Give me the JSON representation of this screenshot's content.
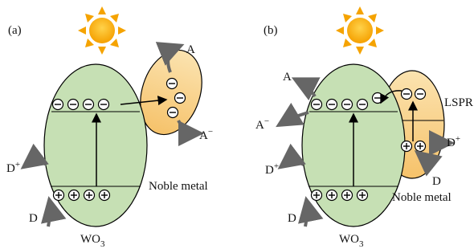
{
  "panels": [
    {
      "label": "(a)",
      "semiconductor": {
        "base": "WO",
        "sub": "3"
      },
      "acceptor": "A",
      "acceptor_ion": {
        "base": "A",
        "sup": "−"
      },
      "donor": "D",
      "donor_ion": {
        "base": "D",
        "sup": "+"
      },
      "metal": "Noble metal"
    },
    {
      "label": "(b)",
      "semiconductor": {
        "base": "WO",
        "sub": "3"
      },
      "acceptor": "A",
      "acceptor_ion": {
        "base": "A",
        "sup": "−"
      },
      "donor": "D",
      "donor_ion": {
        "base": "D",
        "sup": "+"
      },
      "donor_right": "D",
      "donor_ion_right": {
        "base": "D",
        "sup": "+"
      },
      "metal": "Noble metal",
      "effect": "LSPR"
    }
  ]
}
